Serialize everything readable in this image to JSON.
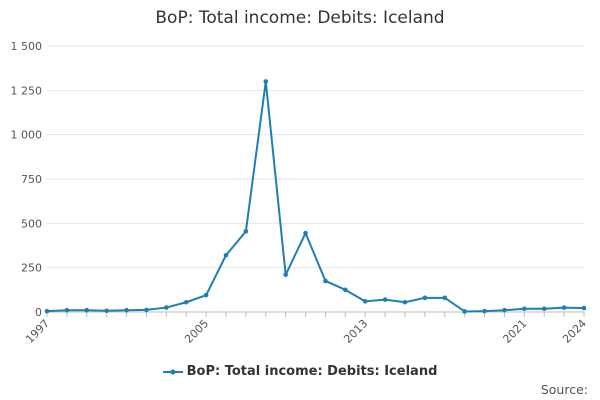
{
  "chart_data": {
    "type": "line",
    "title": "BoP: Total income: Debits: Iceland",
    "xlabel": "",
    "ylabel": "",
    "x": [
      1997,
      1998,
      1999,
      2000,
      2001,
      2002,
      2003,
      2004,
      2005,
      2006,
      2007,
      2008,
      2009,
      2010,
      2011,
      2012,
      2013,
      2014,
      2015,
      2016,
      2017,
      2018,
      2019,
      2020,
      2021,
      2022,
      2023,
      2024
    ],
    "xlim": [
      1997,
      2024
    ],
    "ylim": [
      0,
      1500
    ],
    "yticks": [
      0,
      250,
      500,
      750,
      1000,
      1250,
      1500
    ],
    "ytick_labels": [
      "0",
      "250",
      "500",
      "750",
      "1 000",
      "1 250",
      "1 500"
    ],
    "xticks": [
      1997,
      2005,
      2013,
      2021,
      2024
    ],
    "grid": true,
    "legend_position": "bottom",
    "series": [
      {
        "name": "BoP: Total income: Debits: Iceland",
        "color": "#1f7fb4",
        "values": [
          5,
          10,
          10,
          7,
          10,
          12,
          25,
          55,
          95,
          320,
          455,
          1300,
          210,
          445,
          175,
          125,
          60,
          70,
          55,
          80,
          80,
          3,
          5,
          10,
          18,
          18,
          25,
          22
        ]
      }
    ]
  },
  "legend": {
    "label": "BoP: Total income: Debits: Iceland"
  },
  "footer": {
    "source_label": "Source:"
  }
}
